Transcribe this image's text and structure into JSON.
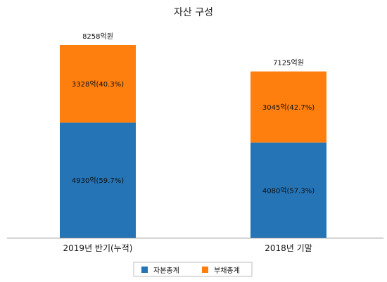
{
  "chart_data": {
    "type": "bar",
    "stacked": true,
    "title": "자산 구성",
    "categories": [
      "2019년 반기(누적)",
      "2018년 기말"
    ],
    "series": [
      {
        "name": "자본총계",
        "color": "#2474b6",
        "values": [
          4930,
          4080
        ],
        "labels": [
          "4930억(59.7%)",
          "4080억(57.3%)"
        ]
      },
      {
        "name": "부채총계",
        "color": "#ff7f0e",
        "values": [
          3328,
          3045
        ],
        "labels": [
          "3328억(40.3%)",
          "3045억(42.7%)"
        ]
      }
    ],
    "totals": [
      8258,
      7125
    ],
    "total_labels": [
      "8258억원",
      "7125억원"
    ],
    "ylim": [
      0,
      10000
    ],
    "grid": false,
    "legend_position": "bottom"
  }
}
